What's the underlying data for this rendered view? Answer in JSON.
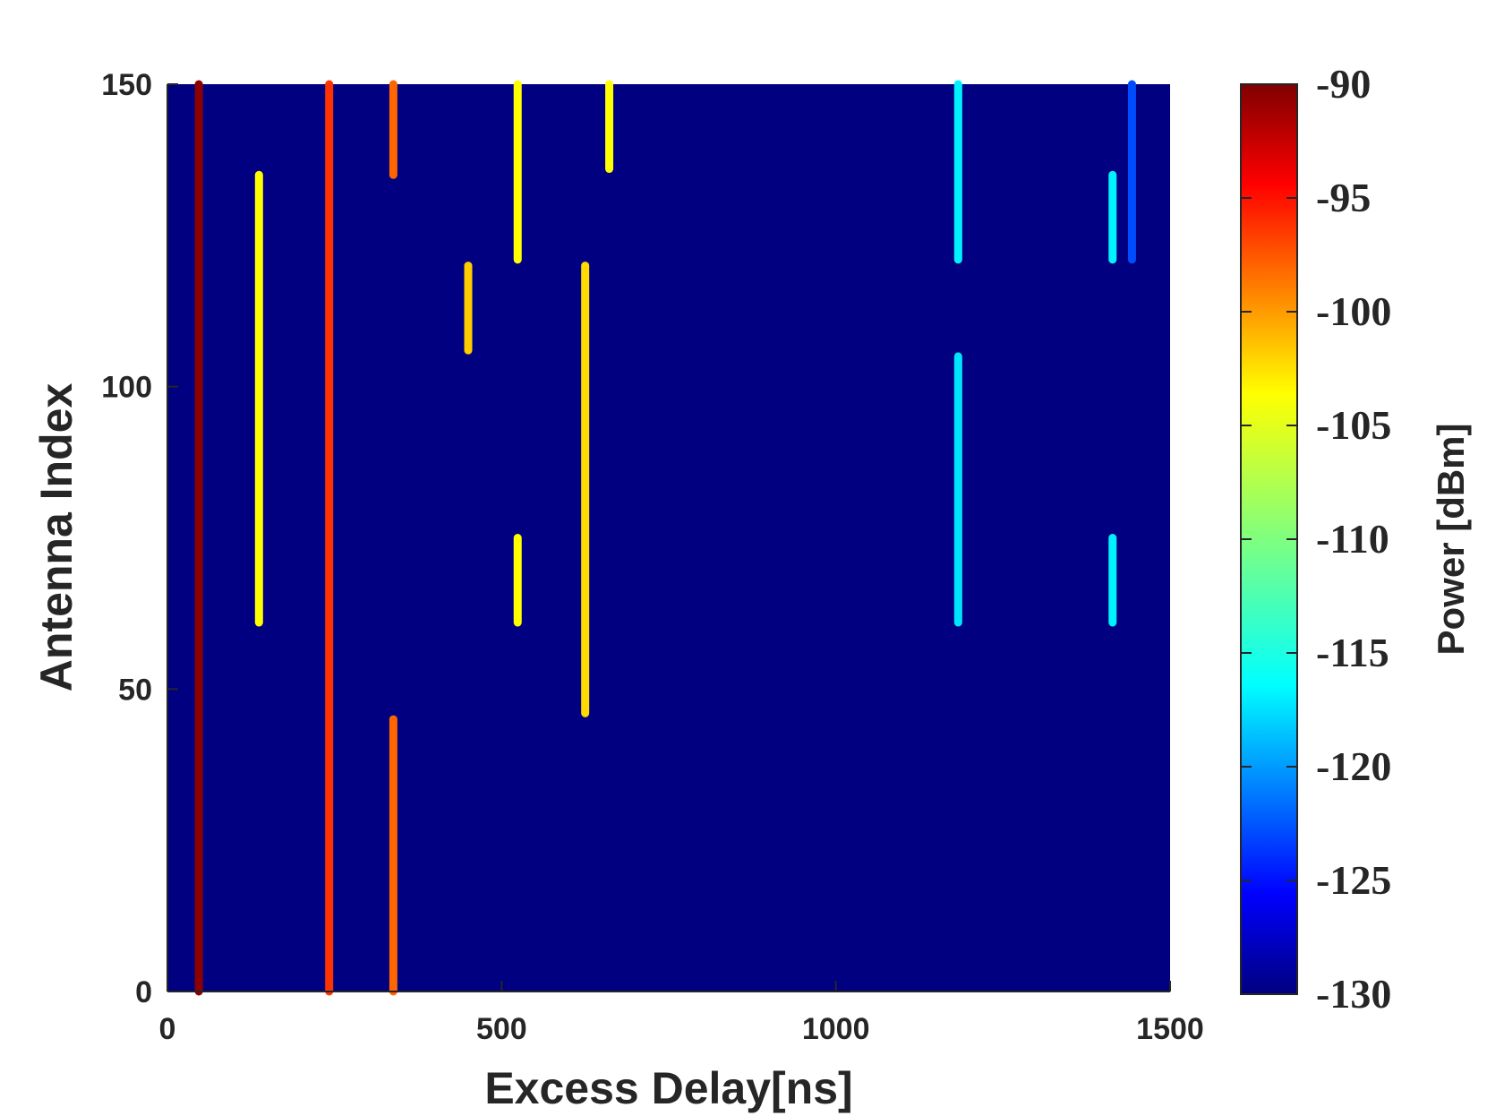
{
  "chart_data": {
    "type": "heatmap",
    "title": "",
    "xlabel": "Excess Delay[ns]",
    "ylabel": "Antenna Index",
    "xlim": [
      0,
      1500
    ],
    "ylim": [
      0,
      150
    ],
    "xticks": [
      0,
      500,
      1000,
      1500
    ],
    "yticks": [
      0,
      50,
      100,
      150
    ],
    "background_value": -130,
    "colorbar": {
      "label": "Power [dBm]",
      "range": [
        -130,
        -90
      ],
      "ticks": [
        -90,
        -95,
        -100,
        -105,
        -110,
        -115,
        -120,
        -125,
        -130
      ],
      "colormap": "jet",
      "placement": "right"
    },
    "segments": [
      {
        "delay": 47,
        "antenna_start": 0,
        "antenna_end": 150,
        "power": -90.5
      },
      {
        "delay": 242,
        "antenna_start": 0,
        "antenna_end": 150,
        "power": -97
      },
      {
        "delay": 338,
        "antenna_start": 0,
        "antenna_end": 45,
        "power": -99
      },
      {
        "delay": 338,
        "antenna_start": 135,
        "antenna_end": 150,
        "power": -99
      },
      {
        "delay": 137,
        "antenna_start": 61,
        "antenna_end": 135,
        "power": -105
      },
      {
        "delay": 450,
        "antenna_start": 106,
        "antenna_end": 120,
        "power": -103
      },
      {
        "delay": 524,
        "antenna_start": 121,
        "antenna_end": 150,
        "power": -105
      },
      {
        "delay": 524,
        "antenna_start": 61,
        "antenna_end": 75,
        "power": -105
      },
      {
        "delay": 625,
        "antenna_start": 46,
        "antenna_end": 120,
        "power": -103.5
      },
      {
        "delay": 661,
        "antenna_start": 136,
        "antenna_end": 150,
        "power": -105
      },
      {
        "delay": 1183,
        "antenna_start": 121,
        "antenna_end": 150,
        "power": -115.5
      },
      {
        "delay": 1183,
        "antenna_start": 61,
        "antenna_end": 105,
        "power": -116
      },
      {
        "delay": 1414,
        "antenna_start": 121,
        "antenna_end": 135,
        "power": -115.5
      },
      {
        "delay": 1414,
        "antenna_start": 61,
        "antenna_end": 75,
        "power": -115.5
      },
      {
        "delay": 1443,
        "antenna_start": 121,
        "antenna_end": 150,
        "power": -122
      }
    ]
  }
}
